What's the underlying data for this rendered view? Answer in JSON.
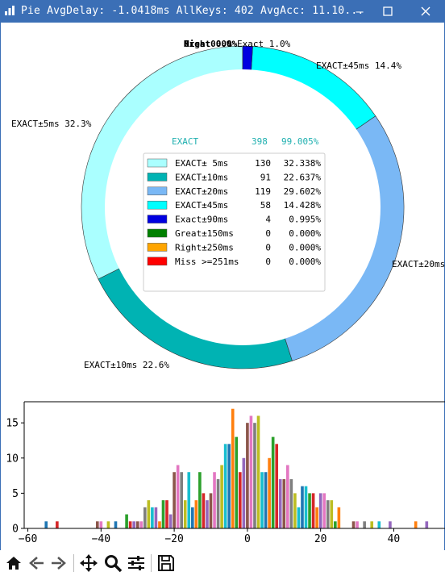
{
  "window": {
    "title": "Pie AvgDelay: -1.0418ms  AllKeys: 402  AvgAcc: 11.10...",
    "minimize_icon": "minimize-icon",
    "maximize_icon": "maximize-icon",
    "close_icon": "close-icon"
  },
  "toolbar": {
    "items": [
      {
        "name": "home-icon"
      },
      {
        "name": "back-icon"
      },
      {
        "name": "forward-icon"
      },
      {
        "name": "pan-icon"
      },
      {
        "name": "zoom-icon"
      },
      {
        "name": "configure-icon"
      },
      {
        "name": "save-icon"
      }
    ]
  },
  "chart_data": [
    {
      "type": "pie",
      "title": "",
      "style": "donut",
      "slices": [
        {
          "label": "EXACT±5ms 32.3%",
          "value": 130,
          "color": "#aaffff"
        },
        {
          "label": "EXACT±10ms 22.6%",
          "value": 91,
          "color": "#00b3b3"
        },
        {
          "label": "EXACT±20ms",
          "value": 119,
          "color": "#7ab8f5"
        },
        {
          "label": "EXACT±45ms 14.4%",
          "value": 58,
          "color": "#00ffff"
        },
        {
          "label": "Exact 1.0%",
          "value": 4,
          "color": "#0000e0"
        },
        {
          "label": "Great 0.0%",
          "value": 0,
          "color": "#008000"
        },
        {
          "label": "Right 0.0%",
          "value": 0,
          "color": "#ffa500"
        },
        {
          "label": "Miss 0.0%",
          "value": 0,
          "color": "#ff0000"
        }
      ],
      "summary": {
        "name": "EXACT",
        "count": "398",
        "percent": "99.005%",
        "color": "#20b0b0"
      },
      "legend": [
        {
          "name": "EXACT± 5ms",
          "count": "130",
          "percent": "32.338%",
          "color": "#aaffff"
        },
        {
          "name": "EXACT±10ms",
          "count": "91",
          "percent": "22.637%",
          "color": "#00b3b3"
        },
        {
          "name": "EXACT±20ms",
          "count": "119",
          "percent": "29.602%",
          "color": "#7ab8f5"
        },
        {
          "name": "EXACT±45ms",
          "count": "58",
          "percent": "14.428%",
          "color": "#00ffff"
        },
        {
          "name": "Exact±90ms",
          "count": "4",
          "percent": "0.995%",
          "color": "#0000e0"
        },
        {
          "name": "Great±150ms",
          "count": "0",
          "percent": "0.000%",
          "color": "#008000"
        },
        {
          "name": "Right±250ms",
          "count": "0",
          "percent": "0.000%",
          "color": "#ffa500"
        },
        {
          "name": "Miss >=251ms",
          "count": "0",
          "percent": "0.000%",
          "color": "#ff0000"
        }
      ],
      "legend_placement": "center"
    },
    {
      "type": "bar",
      "title": "",
      "xlabel": "",
      "ylabel": "",
      "xlim": [
        -61,
        54
      ],
      "ylim": [
        0,
        18
      ],
      "xticks": [
        -60,
        -40,
        -20,
        0,
        20,
        40
      ],
      "yticks": [
        0,
        5,
        10,
        15
      ],
      "grid": false,
      "bars": [
        {
          "x": -55,
          "y": 1,
          "color": "#1f77b4"
        },
        {
          "x": -52,
          "y": 1,
          "color": "#d62728"
        },
        {
          "x": -41,
          "y": 1,
          "color": "#8c564b"
        },
        {
          "x": -40,
          "y": 1,
          "color": "#e377c2"
        },
        {
          "x": -38,
          "y": 1,
          "color": "#bcbd22"
        },
        {
          "x": -36,
          "y": 1,
          "color": "#1f77b4"
        },
        {
          "x": -33,
          "y": 2,
          "color": "#2ca02c"
        },
        {
          "x": -32,
          "y": 1,
          "color": "#d62728"
        },
        {
          "x": -31,
          "y": 1,
          "color": "#9467bd"
        },
        {
          "x": -30,
          "y": 1,
          "color": "#8c564b"
        },
        {
          "x": -29,
          "y": 1,
          "color": "#e377c2"
        },
        {
          "x": -28,
          "y": 3,
          "color": "#7f7f7f"
        },
        {
          "x": -27,
          "y": 4,
          "color": "#bcbd22"
        },
        {
          "x": -26,
          "y": 3,
          "color": "#17becf"
        },
        {
          "x": -25,
          "y": 3,
          "color": "#9467bd"
        },
        {
          "x": -24,
          "y": 1,
          "color": "#ff7f0e"
        },
        {
          "x": -23,
          "y": 4,
          "color": "#2ca02c"
        },
        {
          "x": -22,
          "y": 4,
          "color": "#d62728"
        },
        {
          "x": -21,
          "y": 2,
          "color": "#9467bd"
        },
        {
          "x": -20,
          "y": 8,
          "color": "#8c564b"
        },
        {
          "x": -19,
          "y": 9,
          "color": "#e377c2"
        },
        {
          "x": -18,
          "y": 8,
          "color": "#7f7f7f"
        },
        {
          "x": -17,
          "y": 4,
          "color": "#bcbd22"
        },
        {
          "x": -16,
          "y": 8,
          "color": "#17becf"
        },
        {
          "x": -15,
          "y": 3,
          "color": "#1f77b4"
        },
        {
          "x": -14,
          "y": 4,
          "color": "#ff7f0e"
        },
        {
          "x": -13,
          "y": 8,
          "color": "#2ca02c"
        },
        {
          "x": -12,
          "y": 5,
          "color": "#d62728"
        },
        {
          "x": -11,
          "y": 4,
          "color": "#9467bd"
        },
        {
          "x": -10,
          "y": 5,
          "color": "#8c564b"
        },
        {
          "x": -9,
          "y": 8,
          "color": "#e377c2"
        },
        {
          "x": -8,
          "y": 7,
          "color": "#7f7f7f"
        },
        {
          "x": -7,
          "y": 9,
          "color": "#bcbd22"
        },
        {
          "x": -6,
          "y": 12,
          "color": "#17becf"
        },
        {
          "x": -5,
          "y": 12,
          "color": "#1f77b4"
        },
        {
          "x": -4,
          "y": 17,
          "color": "#ff7f0e"
        },
        {
          "x": -3,
          "y": 13,
          "color": "#2ca02c"
        },
        {
          "x": -2,
          "y": 8,
          "color": "#d62728"
        },
        {
          "x": -1,
          "y": 10,
          "color": "#9467bd"
        },
        {
          "x": 0,
          "y": 15,
          "color": "#8c564b"
        },
        {
          "x": 1,
          "y": 16,
          "color": "#e377c2"
        },
        {
          "x": 2,
          "y": 15,
          "color": "#7f7f7f"
        },
        {
          "x": 3,
          "y": 16,
          "color": "#bcbd22"
        },
        {
          "x": 4,
          "y": 8,
          "color": "#17becf"
        },
        {
          "x": 5,
          "y": 8,
          "color": "#1f77b4"
        },
        {
          "x": 6,
          "y": 10,
          "color": "#ff7f0e"
        },
        {
          "x": 7,
          "y": 13,
          "color": "#2ca02c"
        },
        {
          "x": 8,
          "y": 12,
          "color": "#d62728"
        },
        {
          "x": 9,
          "y": 7,
          "color": "#9467bd"
        },
        {
          "x": 10,
          "y": 7,
          "color": "#8c564b"
        },
        {
          "x": 11,
          "y": 9,
          "color": "#e377c2"
        },
        {
          "x": 12,
          "y": 7,
          "color": "#7f7f7f"
        },
        {
          "x": 13,
          "y": 5,
          "color": "#bcbd22"
        },
        {
          "x": 14,
          "y": 3,
          "color": "#17becf"
        },
        {
          "x": 15,
          "y": 6,
          "color": "#1f77b4"
        },
        {
          "x": 16,
          "y": 6,
          "color": "#17becf"
        },
        {
          "x": 17,
          "y": 5,
          "color": "#2ca02c"
        },
        {
          "x": 18,
          "y": 5,
          "color": "#d62728"
        },
        {
          "x": 19,
          "y": 3,
          "color": "#ff7f0e"
        },
        {
          "x": 20,
          "y": 5,
          "color": "#9467bd"
        },
        {
          "x": 21,
          "y": 5,
          "color": "#e377c2"
        },
        {
          "x": 22,
          "y": 4,
          "color": "#7f7f7f"
        },
        {
          "x": 23,
          "y": 4,
          "color": "#bcbd22"
        },
        {
          "x": 24,
          "y": 1,
          "color": "#2ca02c"
        },
        {
          "x": 25,
          "y": 3,
          "color": "#ff7f0e"
        },
        {
          "x": 29,
          "y": 1,
          "color": "#8c564b"
        },
        {
          "x": 30,
          "y": 1,
          "color": "#e377c2"
        },
        {
          "x": 32,
          "y": 1,
          "color": "#7f7f7f"
        },
        {
          "x": 34,
          "y": 1,
          "color": "#bcbd22"
        },
        {
          "x": 36,
          "y": 1,
          "color": "#17becf"
        },
        {
          "x": 39,
          "y": 1,
          "color": "#9467bd"
        },
        {
          "x": 46,
          "y": 1,
          "color": "#ff7f0e"
        },
        {
          "x": 49,
          "y": 1,
          "color": "#9467bd"
        }
      ]
    }
  ]
}
